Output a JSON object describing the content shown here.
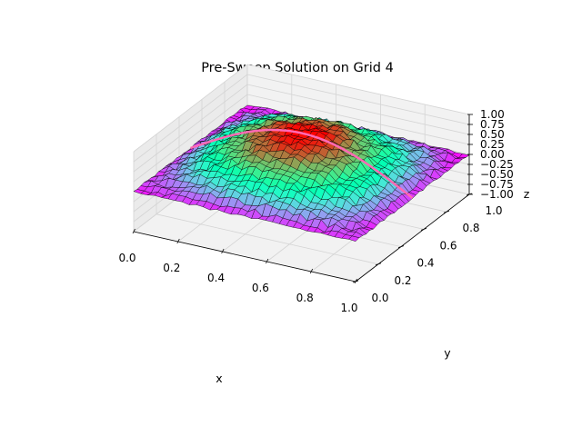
{
  "chart_data": {
    "type": "surface3d",
    "title": "Pre-Sweep Solution on Grid 4",
    "xlabel": "x",
    "ylabel": "y",
    "zlabel": "z",
    "xlim": [
      0.0,
      1.0
    ],
    "ylim": [
      0.0,
      1.0
    ],
    "zlim": [
      -1.0,
      1.0
    ],
    "x_ticks": [
      "0.0",
      "0.2",
      "0.4",
      "0.6",
      "0.8",
      "1.0"
    ],
    "y_ticks": [
      "0.0",
      "0.2",
      "0.4",
      "0.6",
      "0.8",
      "1.0"
    ],
    "z_ticks": [
      "−1.00",
      "−0.75",
      "−0.50",
      "−0.25",
      "0.00",
      "0.25",
      "0.50",
      "0.75",
      "1.00"
    ],
    "grid": true,
    "colormap": "rainbow",
    "surface": {
      "function": "sin(pi*x)*sin(pi*y) + noise",
      "grid_points": 33,
      "noise_amplitude": 0.08,
      "edgecolor": "#000000"
    },
    "overlay_curve": {
      "color": "#ff69b4",
      "function": "sin(pi*x) along y = 0.5"
    }
  }
}
